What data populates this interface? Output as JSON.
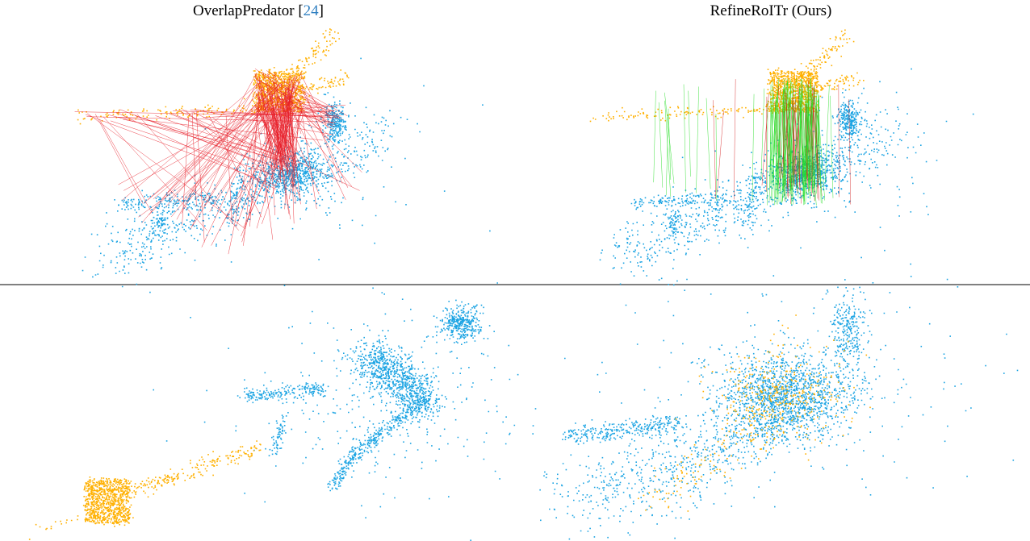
{
  "panels": [
    {
      "title_parts": [
        "OverlapPredator [",
        "24",
        "]"
      ]
    },
    {
      "title_parts": [
        "RefineRoITr (Ours)"
      ]
    }
  ]
}
